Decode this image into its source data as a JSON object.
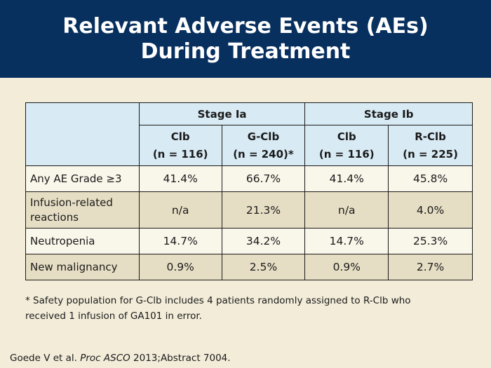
{
  "header": {
    "title_line1": "Relevant Adverse Events (AEs)",
    "title_line2": "During Treatment",
    "bg_color": "#08305e"
  },
  "table": {
    "groups": [
      {
        "label": "Stage Ia"
      },
      {
        "label": "Stage Ib"
      }
    ],
    "columns": [
      {
        "name": "Clb",
        "n": "(n = 116)"
      },
      {
        "name": "G-Clb",
        "n": "(n = 240)*"
      },
      {
        "name": "Clb",
        "n": "(n = 116)"
      },
      {
        "name": "R-Clb",
        "n": "(n = 225)"
      }
    ],
    "rows": [
      {
        "label": "Any AE Grade ≥3",
        "values": [
          "41.4%",
          "66.7%",
          "41.4%",
          "45.8%"
        ]
      },
      {
        "label_line1": "Infusion-related",
        "label_line2": "reactions",
        "values": [
          "n/a",
          "21.3%",
          "n/a",
          "4.0%"
        ]
      },
      {
        "label": "Neutropenia",
        "values": [
          "14.7%",
          "34.2%",
          "14.7%",
          "25.3%"
        ]
      },
      {
        "label": "New malignancy",
        "values": [
          "0.9%",
          "2.5%",
          "0.9%",
          "2.7%"
        ]
      }
    ],
    "colors": {
      "header_bg": "#d8eaf4",
      "row_light": "#f9f6ea",
      "row_tan": "#e6dec4"
    }
  },
  "footnote": {
    "line1": "* Safety population for G-Clb includes 4 patients randomly assigned to R-Clb who",
    "line2": "received 1 infusion of GA101 in error."
  },
  "citation": {
    "prefix": "Goede V et al. ",
    "journal": "Proc ASCO",
    "suffix": " 2013;Abstract 7004."
  }
}
